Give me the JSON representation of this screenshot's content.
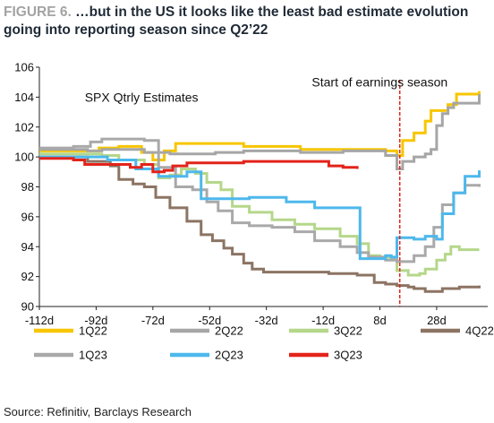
{
  "figure": {
    "label": "FIGURE 6.",
    "title": "…but in the US it looks like the least bad estimate evolution going into reporting season since Q2’22",
    "source": "Source: Refinitiv, Barclays Research"
  },
  "chart_data": {
    "type": "line",
    "xlim": [
      -112,
      46
    ],
    "ylim": [
      90,
      106
    ],
    "x_ticks": [
      -112,
      -92,
      -72,
      -52,
      -32,
      -12,
      8,
      28
    ],
    "x_tick_labels": [
      "-112d",
      "-92d",
      "-72d",
      "-52d",
      "-32d",
      "-12d",
      "8d",
      "28d"
    ],
    "y_ticks": [
      90,
      92,
      94,
      96,
      98,
      100,
      102,
      104,
      106
    ],
    "y_tick_labels": [
      "90",
      "92",
      "94",
      "96",
      "98",
      "100",
      "102",
      "104",
      "106"
    ],
    "grid": false,
    "legend_position": "bottom",
    "annotations": [
      {
        "text": "SPX Qtrly Estimates",
        "x": -96,
        "y": 103.7
      },
      {
        "text": "Start of earnings season",
        "x": -16,
        "y": 104.7
      }
    ],
    "vline": {
      "x": 15,
      "color": "#e3231a",
      "style": "dashed"
    },
    "series": [
      {
        "name": "1Q22",
        "color": "#f7c600",
        "points": [
          [
            -112,
            100.4
          ],
          [
            -94,
            100.4
          ],
          [
            -91,
            100.6
          ],
          [
            -84,
            100.7
          ],
          [
            -76,
            100.3
          ],
          [
            -72,
            99.8
          ],
          [
            -68,
            100.4
          ],
          [
            -64,
            100.9
          ],
          [
            -40,
            100.7
          ],
          [
            -20,
            100.5
          ],
          [
            -5,
            100.5
          ],
          [
            0,
            100.5
          ],
          [
            10,
            100.4
          ],
          [
            14,
            100.1
          ],
          [
            16,
            101.1
          ],
          [
            20,
            101.6
          ],
          [
            24,
            102.4
          ],
          [
            26,
            103.1
          ],
          [
            32,
            103.5
          ],
          [
            35,
            104.2
          ],
          [
            40,
            104.2
          ],
          [
            43,
            104.4
          ]
        ]
      },
      {
        "name": "2Q22",
        "color": "#a6a6a6",
        "points": [
          [
            -112,
            100.5
          ],
          [
            -95,
            100.4
          ],
          [
            -90,
            100.5
          ],
          [
            -75,
            100.3
          ],
          [
            -72,
            100.3
          ],
          [
            -66,
            100.2
          ],
          [
            -50,
            100.3
          ],
          [
            -40,
            100.4
          ],
          [
            -20,
            100.3
          ],
          [
            -5,
            100.4
          ],
          [
            10,
            100.1
          ],
          [
            14,
            99.2
          ],
          [
            16,
            99.7
          ],
          [
            20,
            100
          ],
          [
            24,
            100.2
          ],
          [
            26,
            100.5
          ],
          [
            28,
            102.1
          ],
          [
            30,
            102.9
          ],
          [
            32,
            103.3
          ],
          [
            34,
            103.6
          ],
          [
            40,
            103.6
          ],
          [
            43,
            104.2
          ]
        ]
      },
      {
        "name": "3Q22",
        "color": "#b5d78a",
        "points": [
          [
            -112,
            100.2
          ],
          [
            -90,
            100.1
          ],
          [
            -84,
            99.8
          ],
          [
            -75,
            99.5
          ],
          [
            -70,
            98.6
          ],
          [
            -66,
            98.8
          ],
          [
            -62,
            99.2
          ],
          [
            -57,
            98.9
          ],
          [
            -53,
            98.3
          ],
          [
            -48,
            97.8
          ],
          [
            -44,
            96.7
          ],
          [
            -38,
            96.3
          ],
          [
            -30,
            95.8
          ],
          [
            -22,
            95.5
          ],
          [
            -15,
            95.2
          ],
          [
            -6,
            94.7
          ],
          [
            0,
            94.2
          ],
          [
            4,
            93.4
          ],
          [
            8,
            93.3
          ],
          [
            12,
            93.2
          ],
          [
            14,
            92.4
          ],
          [
            18,
            92.1
          ],
          [
            22,
            92.2
          ],
          [
            24,
            92.5
          ],
          [
            28,
            93.1
          ],
          [
            31,
            93.5
          ],
          [
            33,
            94.0
          ],
          [
            36,
            93.8
          ],
          [
            43,
            93.8
          ]
        ]
      },
      {
        "name": "4Q22",
        "color": "#8c7463",
        "points": [
          [
            -112,
            100.0
          ],
          [
            -95,
            99.7
          ],
          [
            -87,
            99.4
          ],
          [
            -84,
            98.5
          ],
          [
            -79,
            98.2
          ],
          [
            -75,
            98.0
          ],
          [
            -71,
            97.3
          ],
          [
            -66,
            96.6
          ],
          [
            -60,
            95.7
          ],
          [
            -55,
            94.8
          ],
          [
            -51,
            94.4
          ],
          [
            -47,
            93.9
          ],
          [
            -44,
            93.5
          ],
          [
            -40,
            92.9
          ],
          [
            -37,
            92.5
          ],
          [
            -33,
            92.3
          ],
          [
            -20,
            92.3
          ],
          [
            -10,
            92.2
          ],
          [
            0,
            92.1
          ],
          [
            6,
            91.6
          ],
          [
            10,
            91.5
          ],
          [
            14,
            91.4
          ],
          [
            18,
            91.3
          ],
          [
            20,
            91.2
          ],
          [
            24,
            91.0
          ],
          [
            30,
            91.2
          ],
          [
            36,
            91.3
          ],
          [
            40,
            91.3
          ],
          [
            43,
            91.4
          ]
        ]
      },
      {
        "name": "1Q23",
        "color": "#a9a9a9",
        "points": [
          [
            -112,
            100.6
          ],
          [
            -100,
            100.7
          ],
          [
            -94,
            101.0
          ],
          [
            -90,
            101.2
          ],
          [
            -75,
            101.1
          ],
          [
            -70,
            99.3
          ],
          [
            -64,
            98.0
          ],
          [
            -58,
            97.8
          ],
          [
            -53,
            97.0
          ],
          [
            -49,
            96.4
          ],
          [
            -44,
            95.6
          ],
          [
            -38,
            95.4
          ],
          [
            -30,
            95.3
          ],
          [
            -22,
            95.0
          ],
          [
            -15,
            94.4
          ],
          [
            -6,
            94.0
          ],
          [
            0,
            93.6
          ],
          [
            4,
            93.3
          ],
          [
            10,
            93.1
          ],
          [
            14,
            93.0
          ],
          [
            20,
            93.4
          ],
          [
            24,
            94.0
          ],
          [
            27,
            95.3
          ],
          [
            30,
            96.8
          ],
          [
            34,
            97.6
          ],
          [
            38,
            98.1
          ],
          [
            43,
            98.0
          ]
        ]
      },
      {
        "name": "2Q23",
        "color": "#4db8ec",
        "points": [
          [
            -112,
            100.0
          ],
          [
            -88,
            99.8
          ],
          [
            -78,
            99.2
          ],
          [
            -70,
            98.7
          ],
          [
            -60,
            99.0
          ],
          [
            -55,
            97.2
          ],
          [
            -45,
            97.2
          ],
          [
            -38,
            97.3
          ],
          [
            -33,
            97.3
          ],
          [
            -25,
            97.0
          ],
          [
            -20,
            97.0
          ],
          [
            -15,
            96.6
          ],
          [
            0,
            96.6
          ],
          [
            1,
            93.2
          ],
          [
            10,
            93.4
          ],
          [
            12,
            93.3
          ],
          [
            14,
            94.6
          ],
          [
            20,
            94.5
          ],
          [
            24,
            94.7
          ],
          [
            28,
            94.5
          ],
          [
            30,
            96.2
          ],
          [
            34,
            97.6
          ],
          [
            38,
            98.7
          ],
          [
            43,
            99.1
          ]
        ]
      },
      {
        "name": "3Q23",
        "color": "#e3231a",
        "points": [
          [
            -112,
            99.9
          ],
          [
            -100,
            99.8
          ],
          [
            -96,
            99.5
          ],
          [
            -88,
            99.5
          ],
          [
            -80,
            99.3
          ],
          [
            -76,
            99.5
          ],
          [
            -72,
            99.0
          ],
          [
            -68,
            99.1
          ],
          [
            -65,
            99.4
          ],
          [
            -60,
            99.6
          ],
          [
            -40,
            99.7
          ],
          [
            -20,
            99.7
          ],
          [
            -15,
            99.7
          ],
          [
            -10,
            99.4
          ],
          [
            -5,
            99.3
          ],
          [
            0,
            99.2
          ]
        ]
      }
    ]
  }
}
